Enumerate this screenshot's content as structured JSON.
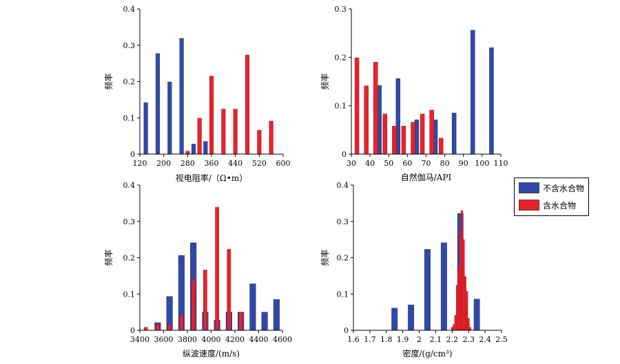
{
  "colors": {
    "blue": "#3149a6",
    "red": "#e8232b",
    "blue_edge": "#1f2f7a",
    "red_edge": "#a81018"
  },
  "legend": {
    "blue_label": "不含水合物",
    "red_label": "含水合物"
  },
  "chart_data": [
    {
      "type": "bar",
      "xlabel": "视电阻率/（Ω•m）",
      "ylabel": "频率",
      "xlim": [
        120,
        600
      ],
      "ylim": [
        0,
        0.4
      ],
      "xticks": [
        120,
        200,
        280,
        360,
        440,
        520,
        600
      ],
      "yticks": [
        0,
        0.1,
        0.2,
        0.3,
        0.4
      ],
      "xtick_labels": [
        "120",
        "200",
        "280",
        "360",
        "440",
        "520",
        "600"
      ],
      "ytick_labels": [
        "0",
        "0.1",
        "0.2",
        "0.3",
        "0.4"
      ],
      "bar_width": 13,
      "series": [
        {
          "color": "blue",
          "x": [
            140,
            180,
            220,
            260,
            300,
            340
          ],
          "values": [
            0.142,
            0.277,
            0.199,
            0.319,
            0.028,
            0.035
          ]
        },
        {
          "color": "red",
          "x": [
            280,
            320,
            360,
            400,
            440,
            480,
            520,
            560
          ],
          "values": [
            0.008,
            0.099,
            0.215,
            0.124,
            0.124,
            0.273,
            0.066,
            0.091
          ]
        }
      ]
    },
    {
      "type": "bar",
      "xlabel": "自然伽马/API",
      "ylabel": "频率",
      "xlim": [
        30,
        110
      ],
      "ylim": [
        0,
        0.3
      ],
      "xticks": [
        30,
        40,
        50,
        60,
        70,
        80,
        90,
        100,
        110
      ],
      "yticks": [
        0,
        0.1,
        0.2,
        0.3
      ],
      "xtick_labels": [
        "30",
        "40",
        "50",
        "60",
        "70",
        "80",
        "90",
        "100",
        "110"
      ],
      "ytick_labels": [
        "0",
        "0.1",
        "0.2",
        "0.3"
      ],
      "bar_width": 2.2,
      "series": [
        {
          "color": "blue",
          "x": [
            45,
            55,
            65,
            75,
            85,
            95,
            105
          ],
          "values": [
            0.142,
            0.156,
            0.071,
            0.071,
            0.085,
            0.256,
            0.22
          ]
        },
        {
          "color": "red",
          "x": [
            33,
            38,
            43,
            48,
            53,
            58,
            63,
            68,
            73,
            78
          ],
          "values": [
            0.199,
            0.141,
            0.19,
            0.083,
            0.058,
            0.058,
            0.066,
            0.083,
            0.091,
            0.033
          ]
        }
      ]
    },
    {
      "type": "bar",
      "xlabel": "纵波速度/(m/s)",
      "ylabel": "频率",
      "xlim": [
        3400,
        4600
      ],
      "ylim": [
        0,
        0.4
      ],
      "xticks": [
        3400,
        3600,
        3800,
        4000,
        4200,
        4400,
        4600
      ],
      "yticks": [
        0,
        0.1,
        0.2,
        0.3,
        0.4
      ],
      "xtick_labels": [
        "3400",
        "3600",
        "3800",
        "4000",
        "4200",
        "4400",
        "4600"
      ],
      "ytick_labels": [
        "0",
        "0.1",
        "0.2",
        "0.3",
        "0.4"
      ],
      "bar_width_blue": 50,
      "bar_width_red": 30,
      "series": [
        {
          "color": "blue",
          "x": [
            3550,
            3650,
            3750,
            3850,
            3950,
            4050,
            4150,
            4250,
            4350,
            4450,
            4550
          ],
          "values": [
            0.021,
            0.093,
            0.206,
            0.241,
            0.05,
            0.028,
            0.05,
            0.05,
            0.128,
            0.05,
            0.085
          ]
        },
        {
          "color": "red",
          "x": [
            3450,
            3550,
            3650,
            3750,
            3850,
            3950,
            4050,
            4150,
            4250
          ],
          "values": [
            0.008,
            0.016,
            0.016,
            0.041,
            0.14,
            0.166,
            0.339,
            0.223,
            0.05
          ]
        }
      ]
    },
    {
      "type": "bar",
      "xlabel": "密度/(g/cm³)",
      "ylabel": "频率",
      "xlim": [
        1.6,
        2.5
      ],
      "ylim": [
        0,
        0.4
      ],
      "xticks": [
        1.6,
        1.7,
        1.8,
        1.9,
        2.0,
        2.1,
        2.2,
        2.3,
        2.4,
        2.5
      ],
      "yticks": [
        0,
        0.1,
        0.2,
        0.3,
        0.4
      ],
      "xtick_labels": [
        "1.6",
        "1.7",
        "1.8",
        "1.9",
        "2",
        "2.1",
        "2.2",
        "2.3",
        "2.4",
        "2.5"
      ],
      "ytick_labels": [
        "0",
        "0.1",
        "0.2",
        "0.3",
        "0.4"
      ],
      "bar_width_blue": 0.035,
      "bar_width_red": 0.01,
      "series": [
        {
          "color": "blue",
          "x": [
            1.85,
            1.95,
            2.05,
            2.15,
            2.25,
            2.35
          ],
          "values": [
            0.061,
            0.07,
            0.223,
            0.241,
            0.322,
            0.086
          ]
        },
        {
          "color": "red",
          "x": [
            2.2,
            2.21,
            2.22,
            2.23,
            2.24,
            2.25,
            2.26,
            2.27,
            2.28,
            2.29,
            2.3,
            2.31
          ],
          "values": [
            0.008,
            0.016,
            0.041,
            0.124,
            0.173,
            0.273,
            0.33,
            0.25,
            0.148,
            0.107,
            0.033,
            0.008
          ]
        }
      ]
    }
  ]
}
